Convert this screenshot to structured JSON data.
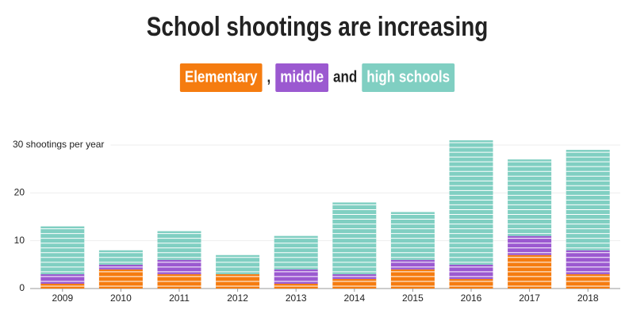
{
  "chart_data": {
    "type": "stacked-bar",
    "title": "School shootings are increasing",
    "subtitle_connectors": [
      ",",
      "and"
    ],
    "categories": [
      "2009",
      "2010",
      "2011",
      "2012",
      "2013",
      "2014",
      "2015",
      "2016",
      "2017",
      "2018"
    ],
    "series": [
      {
        "name": "Elementary",
        "color": "#f57c10",
        "values": [
          1,
          4,
          3,
          3,
          1,
          2,
          4,
          2,
          7,
          3
        ]
      },
      {
        "name": "middle",
        "color": "#9b59d0",
        "values": [
          2,
          1,
          3,
          0,
          3,
          1,
          2,
          3,
          4,
          5
        ]
      },
      {
        "name": "high schools",
        "color": "#80cfc2",
        "values": [
          10,
          3,
          6,
          4,
          7,
          15,
          10,
          26,
          16,
          21
        ]
      }
    ],
    "ylim": [
      0,
      31
    ],
    "yticks": [
      0,
      10,
      20,
      {
        "value": 30,
        "label": "30 shootings per year"
      }
    ],
    "grid": true
  }
}
